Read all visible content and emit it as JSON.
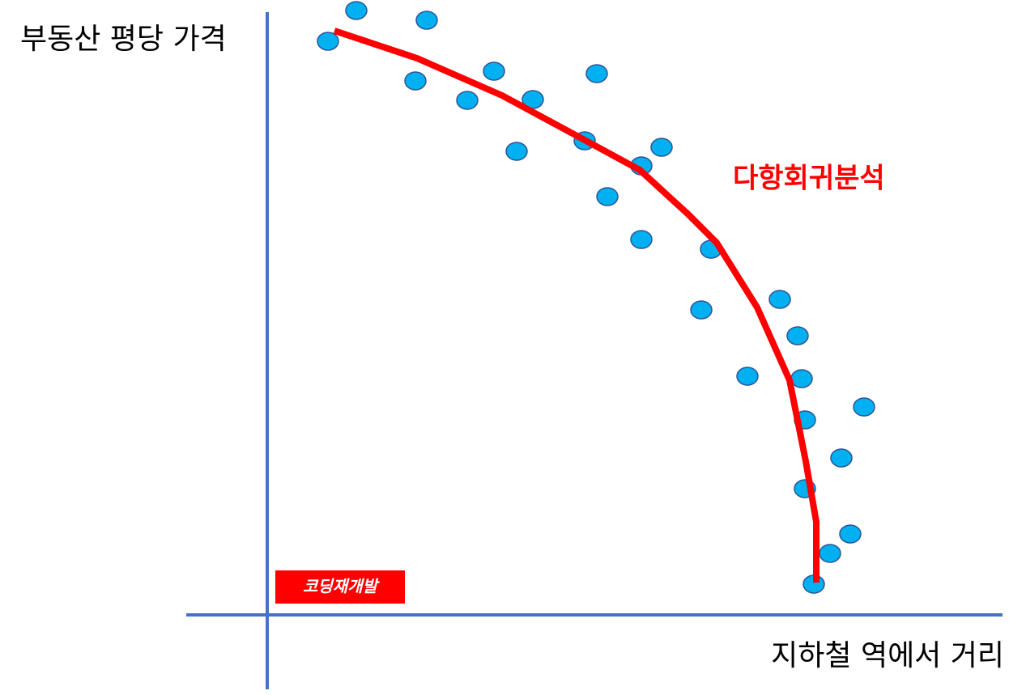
{
  "axes": {
    "y_label": "부동산 평당 가격",
    "x_label": "지하철 역에서 거리"
  },
  "curve_label": "다항회귀분석",
  "badge": "코딩재개발"
}
